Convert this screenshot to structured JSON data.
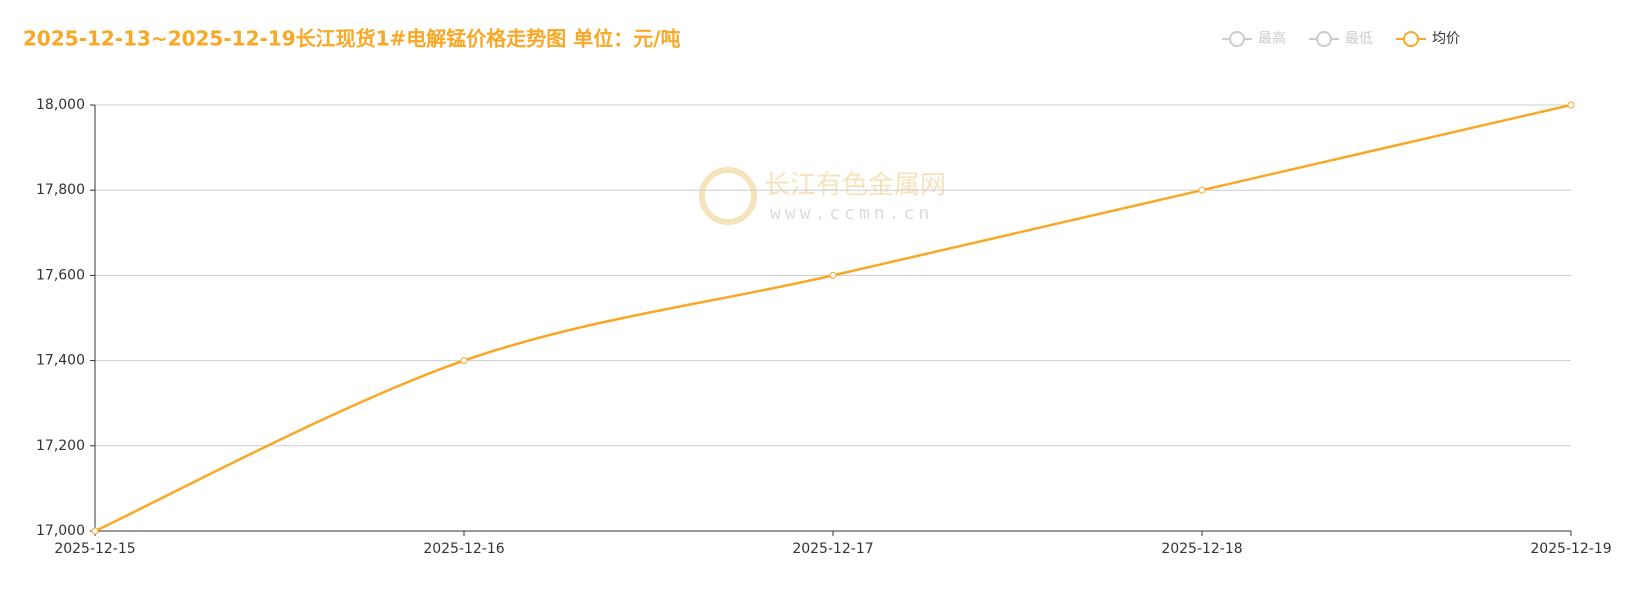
{
  "chart_data": {
    "type": "line",
    "title": "2025-12-13~2025-12-19长江现货1#电解锰价格走势图 单位：元/吨",
    "watermark": [
      "长江有色金属网",
      "www.ccmn.cn"
    ],
    "categories": [
      "2025-12-15",
      "2025-12-16",
      "2025-12-17",
      "2025-12-18",
      "2025-12-19"
    ],
    "series": [
      {
        "name": "最高",
        "color": "#cccccc",
        "selected": false,
        "values": [
          null,
          null,
          null,
          null,
          null
        ]
      },
      {
        "name": "最低",
        "color": "#cccccc",
        "selected": false,
        "values": [
          null,
          null,
          null,
          null,
          null
        ]
      },
      {
        "name": "均价",
        "color": "#f9a825",
        "selected": true,
        "values": [
          17000,
          17400,
          17600,
          17800,
          18000
        ]
      }
    ],
    "ylim": [
      17000,
      18000
    ],
    "yticks": [
      {
        "value": 17000,
        "label": "17,000"
      },
      {
        "value": 17200,
        "label": "17,200"
      },
      {
        "value": 17400,
        "label": "17,400"
      },
      {
        "value": 17600,
        "label": "17,600"
      },
      {
        "value": 17800,
        "label": "17,800"
      },
      {
        "value": 18000,
        "label": "18,000"
      }
    ],
    "grid": true
  }
}
